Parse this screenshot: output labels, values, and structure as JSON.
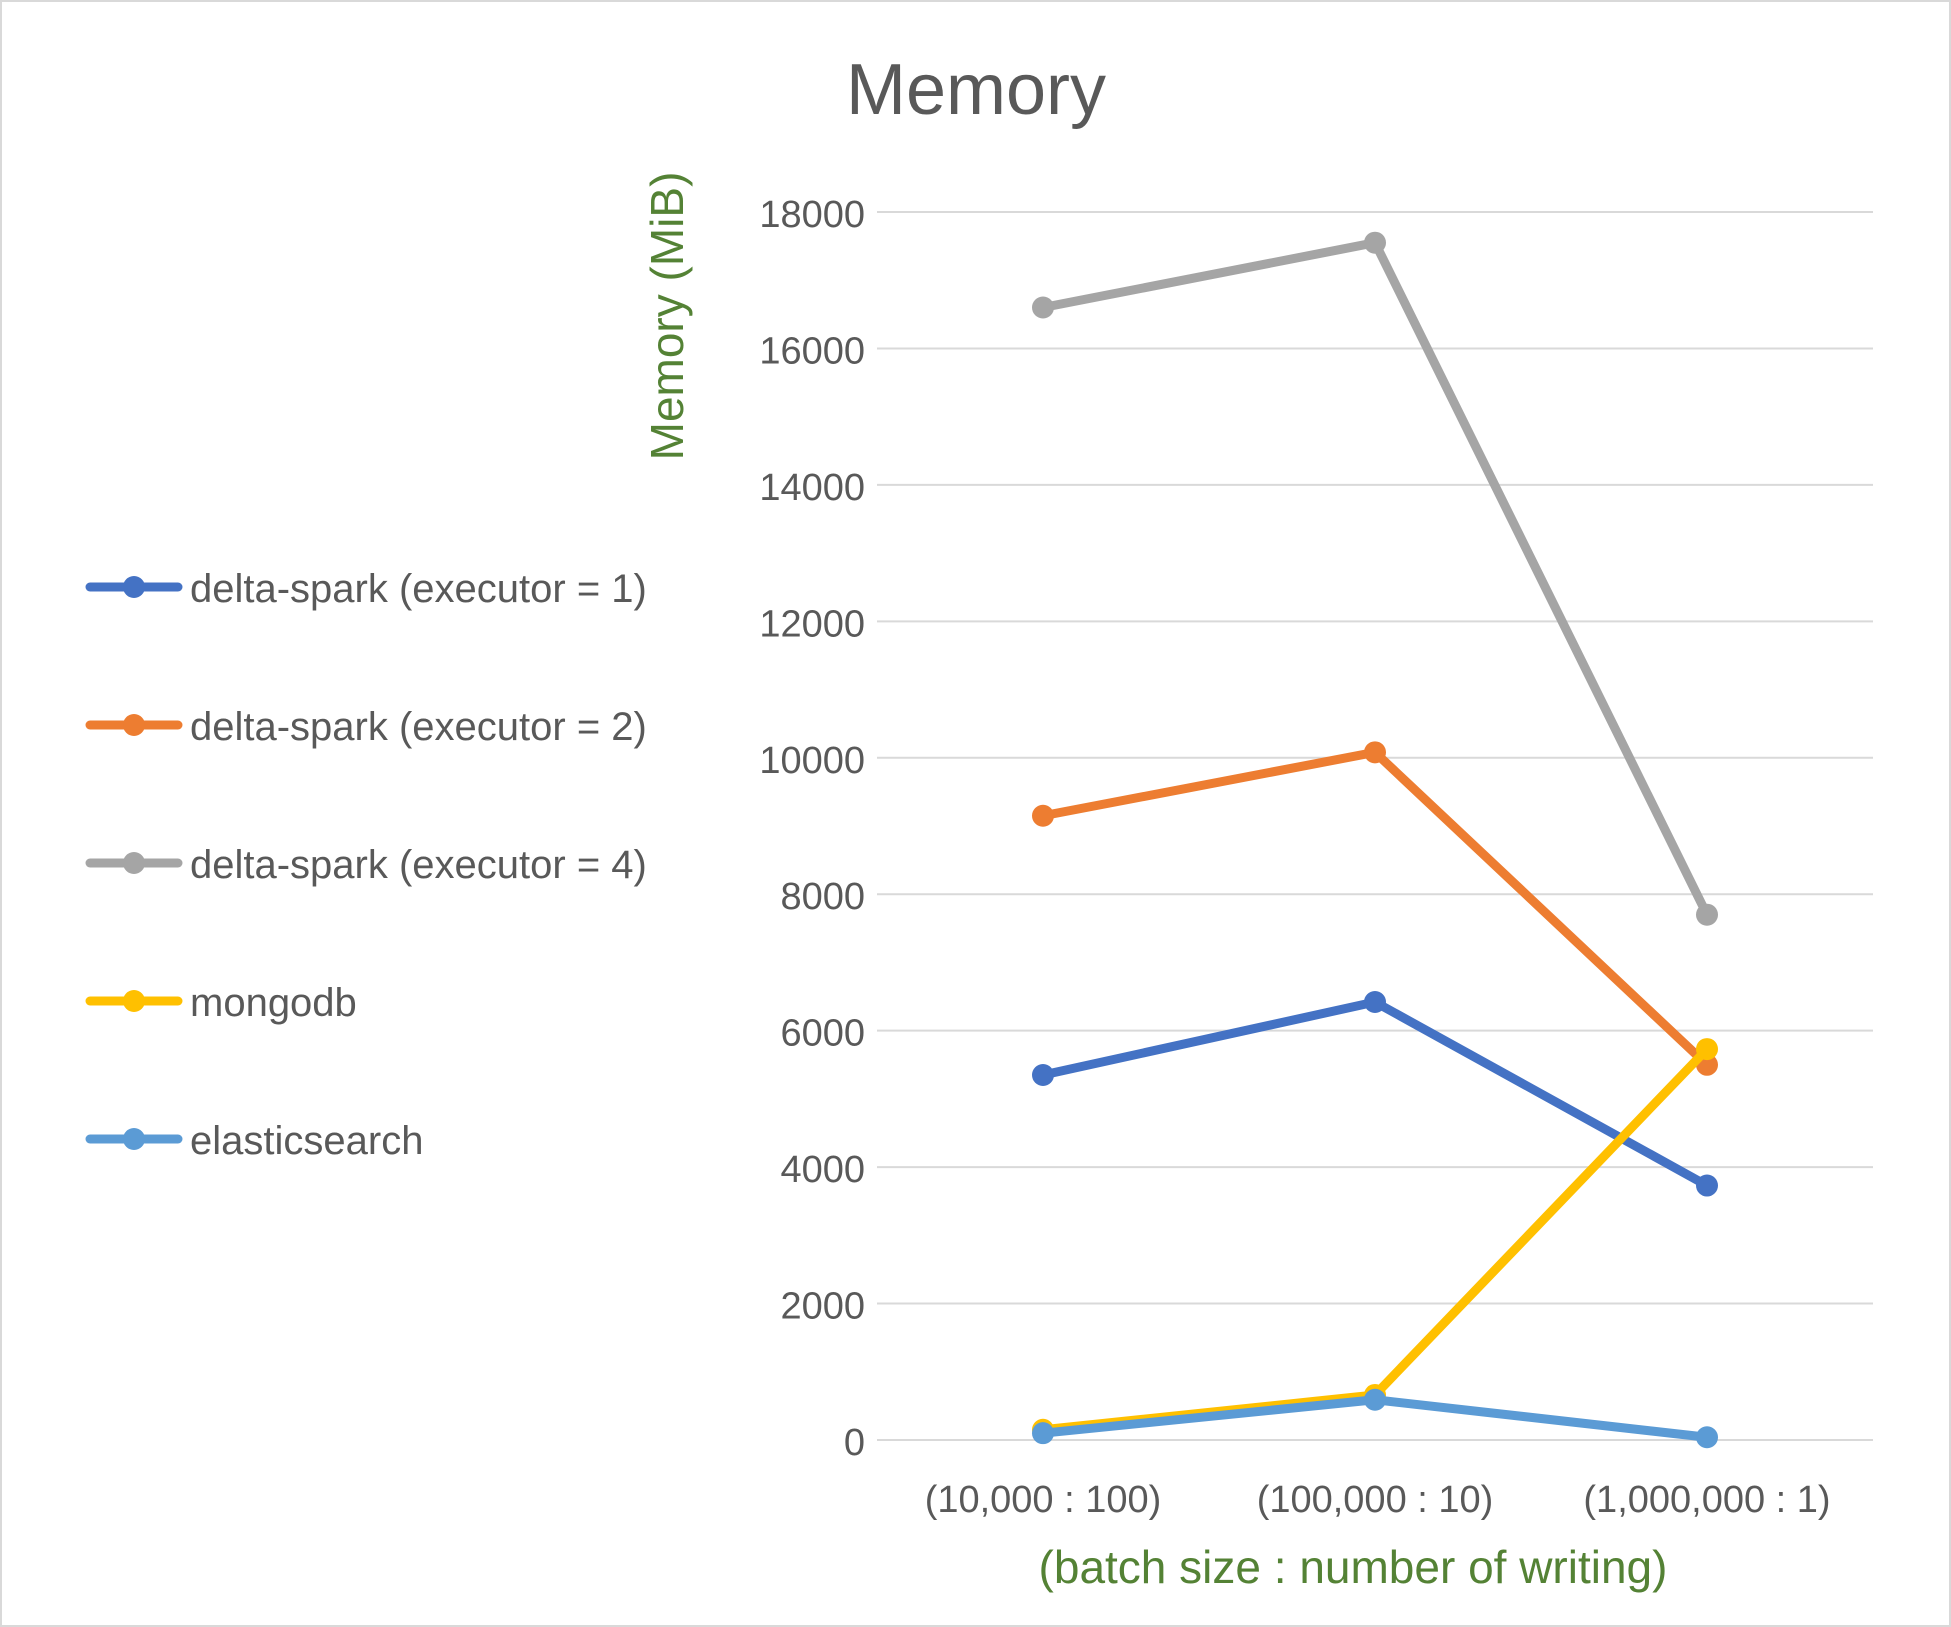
{
  "chart_data": {
    "type": "line",
    "title": "Memory",
    "xlabel": "(batch size : number of writing)",
    "ylabel": "Memory (MiB)",
    "categories": [
      "(10,000 : 100)",
      "(100,000 : 10)",
      "(1,000,000 : 1)"
    ],
    "ylim": [
      0,
      18000
    ],
    "yticks": [
      0,
      2000,
      4000,
      6000,
      8000,
      10000,
      12000,
      14000,
      16000,
      18000
    ],
    "grid": true,
    "legend_position": "left",
    "series": [
      {
        "name": "delta-spark (executor = 1)",
        "color": "#4472C4",
        "values": [
          5350,
          6420,
          3730
        ]
      },
      {
        "name": "delta-spark (executor = 2)",
        "color": "#ED7D31",
        "values": [
          9150,
          10080,
          5500
        ]
      },
      {
        "name": "delta-spark (executor = 4)",
        "color": "#A5A5A5",
        "values": [
          16600,
          17550,
          7700
        ]
      },
      {
        "name": "mongodb",
        "color": "#FFC000",
        "values": [
          150,
          660,
          5730
        ]
      },
      {
        "name": "elasticsearch",
        "color": "#5B9BD5",
        "values": [
          100,
          590,
          40
        ]
      }
    ],
    "colors": {
      "title": "#595959",
      "axis_title": "#548235",
      "tick_label": "#595959",
      "grid": "#d9d9d9"
    }
  }
}
